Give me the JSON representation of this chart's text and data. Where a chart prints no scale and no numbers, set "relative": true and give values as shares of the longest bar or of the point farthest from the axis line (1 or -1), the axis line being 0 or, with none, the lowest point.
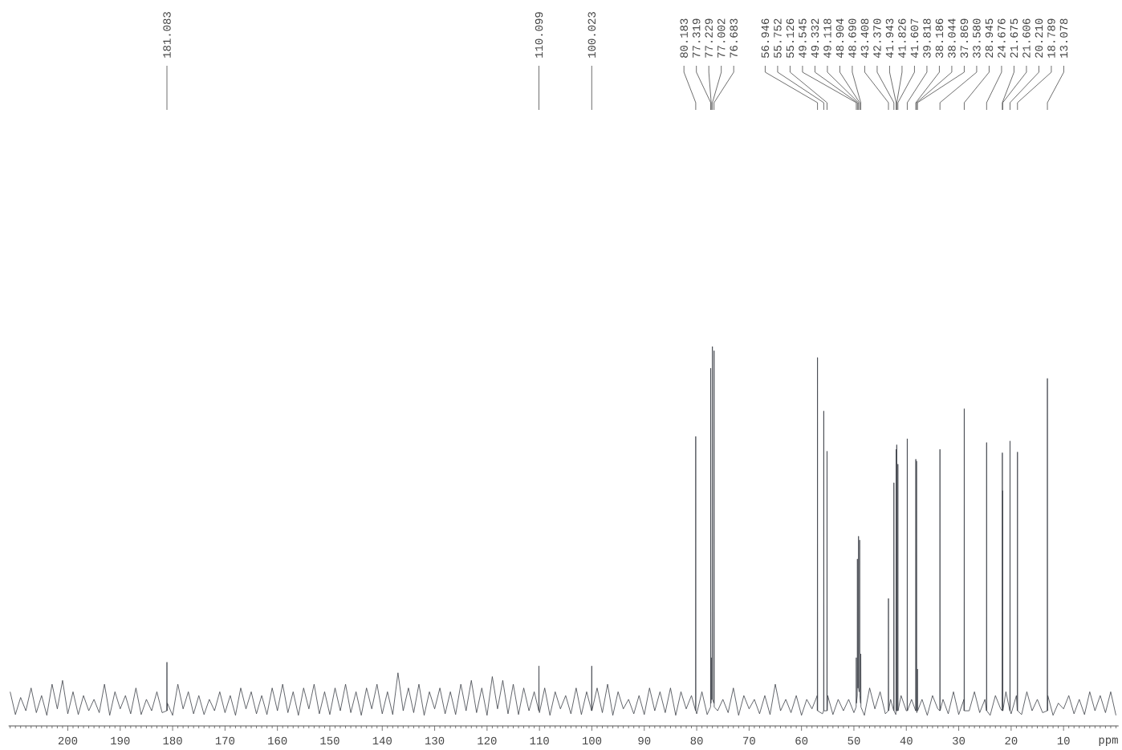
{
  "chart_data": {
    "type": "line",
    "relative": true,
    "xlabel": "ppm",
    "xlim": [
      211.3,
      -0.5
    ],
    "color": "#3c4047",
    "xticks": [
      {
        "value": 211,
        "label": null
      },
      {
        "value": 210,
        "label": null
      },
      {
        "value": 209,
        "label": null
      },
      {
        "value": 208,
        "label": null
      },
      {
        "value": 207,
        "label": null
      },
      {
        "value": 206,
        "label": null
      },
      {
        "value": 205,
        "label": null
      },
      {
        "value": 204,
        "label": null
      },
      {
        "value": 203,
        "label": null
      },
      {
        "value": 202,
        "label": null
      },
      {
        "value": 201,
        "label": null
      },
      200,
      {
        "value": 199,
        "label": null
      },
      {
        "value": 198,
        "label": null
      },
      {
        "value": 197,
        "label": null
      },
      {
        "value": 196,
        "label": null
      },
      {
        "value": 195,
        "label": null
      },
      {
        "value": 194,
        "label": null
      },
      {
        "value": 193,
        "label": null
      },
      {
        "value": 192,
        "label": null
      },
      {
        "value": 191,
        "label": null
      },
      190,
      {
        "value": 189,
        "label": null
      },
      {
        "value": 188,
        "label": null
      },
      {
        "value": 187,
        "label": null
      },
      {
        "value": 186,
        "label": null
      },
      {
        "value": 185,
        "label": null
      },
      {
        "value": 184,
        "label": null
      },
      {
        "value": 183,
        "label": null
      },
      {
        "value": 182,
        "label": null
      },
      {
        "value": 181,
        "label": null
      },
      180,
      {
        "value": 179,
        "label": null
      },
      {
        "value": 178,
        "label": null
      },
      {
        "value": 177,
        "label": null
      },
      {
        "value": 176,
        "label": null
      },
      {
        "value": 175,
        "label": null
      },
      {
        "value": 174,
        "label": null
      },
      {
        "value": 173,
        "label": null
      },
      {
        "value": 172,
        "label": null
      },
      {
        "value": 171,
        "label": null
      },
      170,
      {
        "value": 169,
        "label": null
      },
      {
        "value": 168,
        "label": null
      },
      {
        "value": 167,
        "label": null
      },
      {
        "value": 166,
        "label": null
      },
      {
        "value": 165,
        "label": null
      },
      {
        "value": 164,
        "label": null
      },
      {
        "value": 163,
        "label": null
      },
      {
        "value": 162,
        "label": null
      },
      {
        "value": 161,
        "label": null
      },
      160,
      {
        "value": 159,
        "label": null
      },
      {
        "value": 158,
        "label": null
      },
      {
        "value": 157,
        "label": null
      },
      {
        "value": 156,
        "label": null
      },
      {
        "value": 155,
        "label": null
      },
      {
        "value": 154,
        "label": null
      },
      {
        "value": 153,
        "label": null
      },
      {
        "value": 152,
        "label": null
      },
      {
        "value": 151,
        "label": null
      },
      150,
      {
        "value": 149,
        "label": null
      },
      {
        "value": 148,
        "label": null
      },
      {
        "value": 147,
        "label": null
      },
      {
        "value": 146,
        "label": null
      },
      {
        "value": 145,
        "label": null
      },
      {
        "value": 144,
        "label": null
      },
      {
        "value": 143,
        "label": null
      },
      {
        "value": 142,
        "label": null
      },
      {
        "value": 141,
        "label": null
      },
      140,
      {
        "value": 139,
        "label": null
      },
      {
        "value": 138,
        "label": null
      },
      {
        "value": 137,
        "label": null
      },
      {
        "value": 136,
        "label": null
      },
      {
        "value": 135,
        "label": null
      },
      {
        "value": 134,
        "label": null
      },
      {
        "value": 133,
        "label": null
      },
      {
        "value": 132,
        "label": null
      },
      {
        "value": 131,
        "label": null
      },
      130,
      {
        "value": 129,
        "label": null
      },
      {
        "value": 128,
        "label": null
      },
      {
        "value": 127,
        "label": null
      },
      {
        "value": 126,
        "label": null
      },
      {
        "value": 125,
        "label": null
      },
      {
        "value": 124,
        "label": null
      },
      {
        "value": 123,
        "label": null
      },
      {
        "value": 122,
        "label": null
      },
      {
        "value": 121,
        "label": null
      },
      120,
      {
        "value": 119,
        "label": null
      },
      {
        "value": 118,
        "label": null
      },
      {
        "value": 117,
        "label": null
      },
      {
        "value": 116,
        "label": null
      },
      {
        "value": 115,
        "label": null
      },
      {
        "value": 114,
        "label": null
      },
      {
        "value": 113,
        "label": null
      },
      {
        "value": 112,
        "label": null
      },
      {
        "value": 111,
        "label": null
      },
      110,
      {
        "value": 109,
        "label": null
      },
      {
        "value": 108,
        "label": null
      },
      {
        "value": 107,
        "label": null
      },
      {
        "value": 106,
        "label": null
      },
      {
        "value": 105,
        "label": null
      },
      {
        "value": 104,
        "label": null
      },
      {
        "value": 103,
        "label": null
      },
      {
        "value": 102,
        "label": null
      },
      {
        "value": 101,
        "label": null
      },
      100,
      {
        "value": 99,
        "label": null
      },
      {
        "value": 98,
        "label": null
      },
      {
        "value": 97,
        "label": null
      },
      {
        "value": 96,
        "label": null
      },
      {
        "value": 95,
        "label": null
      },
      {
        "value": 94,
        "label": null
      },
      {
        "value": 93,
        "label": null
      },
      {
        "value": 92,
        "label": null
      },
      {
        "value": 91,
        "label": null
      },
      90,
      {
        "value": 89,
        "label": null
      },
      {
        "value": 88,
        "label": null
      },
      {
        "value": 87,
        "label": null
      },
      {
        "value": 86,
        "label": null
      },
      {
        "value": 85,
        "label": null
      },
      {
        "value": 84,
        "label": null
      },
      {
        "value": 83,
        "label": null
      },
      {
        "value": 82,
        "label": null
      },
      {
        "value": 81,
        "label": null
      },
      80,
      {
        "value": 79,
        "label": null
      },
      {
        "value": 78,
        "label": null
      },
      {
        "value": 77,
        "label": null
      },
      {
        "value": 76,
        "label": null
      },
      {
        "value": 75,
        "label": null
      },
      {
        "value": 74,
        "label": null
      },
      {
        "value": 73,
        "label": null
      },
      {
        "value": 72,
        "label": null
      },
      {
        "value": 71,
        "label": null
      },
      70,
      {
        "value": 69,
        "label": null
      },
      {
        "value": 68,
        "label": null
      },
      {
        "value": 67,
        "label": null
      },
      {
        "value": 66,
        "label": null
      },
      {
        "value": 65,
        "label": null
      },
      {
        "value": 64,
        "label": null
      },
      {
        "value": 63,
        "label": null
      },
      {
        "value": 62,
        "label": null
      },
      {
        "value": 61,
        "label": null
      },
      60,
      {
        "value": 59,
        "label": null
      },
      {
        "value": 58,
        "label": null
      },
      {
        "value": 57,
        "label": null
      },
      {
        "value": 56,
        "label": null
      },
      {
        "value": 55,
        "label": null
      },
      {
        "value": 54,
        "label": null
      },
      {
        "value": 53,
        "label": null
      },
      {
        "value": 52,
        "label": null
      },
      {
        "value": 51,
        "label": null
      },
      50,
      {
        "value": 49,
        "label": null
      },
      {
        "value": 48,
        "label": null
      },
      {
        "value": 47,
        "label": null
      },
      {
        "value": 46,
        "label": null
      },
      {
        "value": 45,
        "label": null
      },
      {
        "value": 44,
        "label": null
      },
      {
        "value": 43,
        "label": null
      },
      {
        "value": 42,
        "label": null
      },
      {
        "value": 41,
        "label": null
      },
      40,
      {
        "value": 39,
        "label": null
      },
      {
        "value": 38,
        "label": null
      },
      {
        "value": 37,
        "label": null
      },
      {
        "value": 36,
        "label": null
      },
      {
        "value": 35,
        "label": null
      },
      {
        "value": 34,
        "label": null
      },
      {
        "value": 33,
        "label": null
      },
      {
        "value": 32,
        "label": null
      },
      {
        "value": 31,
        "label": null
      },
      30,
      {
        "value": 29,
        "label": null
      },
      {
        "value": 28,
        "label": null
      },
      {
        "value": 27,
        "label": null
      },
      {
        "value": 26,
        "label": null
      },
      {
        "value": 25,
        "label": null
      },
      {
        "value": 24,
        "label": null
      },
      {
        "value": 23,
        "label": null
      },
      {
        "value": 22,
        "label": null
      },
      {
        "value": 21,
        "label": null
      },
      20,
      {
        "value": 19,
        "label": null
      },
      {
        "value": 18,
        "label": null
      },
      {
        "value": 17,
        "label": null
      },
      {
        "value": 16,
        "label": null
      },
      {
        "value": 15,
        "label": null
      },
      {
        "value": 14,
        "label": null
      },
      {
        "value": 13,
        "label": null
      },
      {
        "value": 12,
        "label": null
      },
      {
        "value": 11,
        "label": null
      },
      10,
      {
        "value": 9,
        "label": null
      },
      {
        "value": 8,
        "label": null
      },
      {
        "value": 7,
        "label": null
      },
      {
        "value": 6,
        "label": null
      },
      {
        "value": 5,
        "label": null
      },
      {
        "value": 4,
        "label": null
      },
      {
        "value": 3,
        "label": null
      },
      {
        "value": 2,
        "label": null
      },
      {
        "value": 1,
        "label": null
      },
      {
        "value": 0,
        "label": null
      }
    ],
    "x": [
      211,
      210,
      209,
      208,
      207,
      206,
      205,
      204,
      203,
      202,
      201,
      200,
      199,
      198,
      197,
      196,
      195,
      194,
      193,
      192,
      191,
      190,
      189,
      188,
      187,
      186,
      185,
      184,
      183,
      182,
      181.113,
      181.083,
      181.053,
      181,
      180,
      179,
      178,
      177,
      176,
      175,
      174,
      173,
      172,
      171,
      170,
      169,
      168,
      167,
      166,
      165,
      164,
      163,
      162,
      161,
      160,
      159,
      158,
      157,
      156,
      155,
      154,
      153,
      152,
      151,
      150,
      149,
      148,
      147,
      146,
      145,
      144,
      143,
      142,
      141,
      140,
      139,
      138,
      137,
      136,
      135,
      134,
      133,
      132,
      131,
      130,
      129,
      128,
      127,
      126,
      125,
      124,
      123,
      122,
      121,
      120,
      119,
      118,
      117,
      116,
      115,
      114,
      113,
      112,
      111,
      110.129,
      110.099,
      110.069,
      110,
      109,
      108,
      107,
      106,
      105,
      104,
      103,
      102,
      101,
      100.053,
      100.023,
      99.993,
      99,
      98,
      97,
      96,
      95,
      94,
      93,
      92,
      91,
      90,
      89,
      88,
      87,
      86,
      85,
      84,
      83,
      82,
      81,
      80.213,
      80.183,
      80.153,
      80,
      79,
      78,
      77.349,
      77.319,
      77.289,
      77.259,
      77.229,
      77.199,
      77.032,
      77.002,
      76.972,
      76.713,
      76.683,
      76.653,
      76,
      75,
      74,
      73,
      72,
      71,
      70,
      69,
      68,
      67,
      66,
      65,
      64,
      63,
      62,
      61,
      60,
      59,
      58,
      57,
      56.976,
      56.946,
      56.916,
      56,
      55.782,
      55.752,
      55.722,
      55.156,
      55.126,
      55.096,
      55,
      54,
      53,
      52,
      51,
      50,
      49.575,
      49.545,
      49.515,
      49.362,
      49.332,
      49.302,
      49.148,
      49.118,
      49.088,
      49,
      48.934,
      48.904,
      48.874,
      48.72,
      48.69,
      48.66,
      48,
      47,
      46,
      45,
      44,
      43.438,
      43.408,
      43.378,
      43,
      42.4,
      42.37,
      42.34,
      42,
      41.973,
      41.943,
      41.913,
      41.856,
      41.826,
      41.796,
      41.637,
      41.607,
      41.577,
      41,
      40,
      39.848,
      39.818,
      39.788,
      39,
      38.216,
      38.186,
      38.156,
      38.074,
      38.044,
      38.014,
      38,
      37.899,
      37.869,
      37.839,
      37,
      36,
      35,
      34,
      33.61,
      33.58,
      33.55,
      33,
      32,
      31,
      30,
      29,
      28.975,
      28.945,
      28.915,
      28,
      27,
      26,
      25,
      24.706,
      24.676,
      24.646,
      24,
      23,
      22,
      21.705,
      21.675,
      21.645,
      21.636,
      21.606,
      21.576,
      21,
      20.24,
      20.21,
      20.18,
      20,
      19,
      18.819,
      18.789,
      18.759,
      18,
      17,
      16,
      15,
      14,
      13.108,
      13.078,
      13.048,
      13,
      12,
      11,
      10,
      9,
      8,
      7,
      6,
      5,
      4,
      3,
      2,
      1,
      0
    ],
    "values": [
      0.09,
      0.03,
      0.075,
      0.04,
      0.1,
      0.035,
      0.08,
      0.028,
      0.11,
      0.045,
      0.12,
      0.032,
      0.09,
      0.03,
      0.08,
      0.04,
      0.07,
      0.035,
      0.11,
      0.028,
      0.09,
      0.045,
      0.08,
      0.032,
      0.1,
      0.03,
      0.07,
      0.04,
      0.09,
      0.035,
      0.04,
      0.168,
      0.04,
      0.06,
      0.028,
      0.11,
      0.045,
      0.09,
      0.032,
      0.08,
      0.03,
      0.07,
      0.04,
      0.09,
      0.035,
      0.08,
      0.028,
      0.1,
      0.045,
      0.09,
      0.032,
      0.08,
      0.03,
      0.1,
      0.04,
      0.11,
      0.035,
      0.09,
      0.028,
      0.1,
      0.045,
      0.11,
      0.032,
      0.09,
      0.03,
      0.1,
      0.04,
      0.11,
      0.035,
      0.09,
      0.028,
      0.1,
      0.045,
      0.11,
      0.032,
      0.09,
      0.03,
      0.14,
      0.04,
      0.1,
      0.035,
      0.11,
      0.028,
      0.09,
      0.045,
      0.1,
      0.032,
      0.09,
      0.03,
      0.11,
      0.04,
      0.12,
      0.035,
      0.1,
      0.028,
      0.13,
      0.045,
      0.12,
      0.032,
      0.11,
      0.03,
      0.1,
      0.04,
      0.09,
      0.04,
      0.158,
      0.04,
      0.035,
      0.1,
      0.028,
      0.09,
      0.045,
      0.08,
      0.032,
      0.1,
      0.03,
      0.09,
      0.04,
      0.158,
      0.04,
      0.1,
      0.035,
      0.11,
      0.028,
      0.09,
      0.045,
      0.07,
      0.032,
      0.08,
      0.03,
      0.1,
      0.04,
      0.09,
      0.035,
      0.1,
      0.028,
      0.09,
      0.045,
      0.08,
      0.04,
      0.763,
      0.04,
      0.032,
      0.09,
      0.03,
      0.05,
      0.943,
      0.06,
      0.06,
      0.18,
      0.07,
      0.07,
      1,
      0.07,
      0.06,
      0.989,
      0.05,
      0.04,
      0.07,
      0.035,
      0.1,
      0.028,
      0.08,
      0.045,
      0.07,
      0.032,
      0.08,
      0.03,
      0.11,
      0.04,
      0.07,
      0.035,
      0.08,
      0.028,
      0.07,
      0.045,
      0.08,
      0.04,
      0.971,
      0.04,
      0.032,
      0.04,
      0.83,
      0.04,
      0.04,
      0.724,
      0.04,
      0.08,
      0.03,
      0.07,
      0.04,
      0.07,
      0.035,
      0.05,
      0.18,
      0.06,
      0.08,
      0.44,
      0.1,
      0.1,
      0.5,
      0.1,
      0.09,
      0.1,
      0.49,
      0.08,
      0.06,
      0.19,
      0.05,
      0.028,
      0.1,
      0.045,
      0.09,
      0.032,
      0.04,
      0.336,
      0.04,
      0.07,
      0.04,
      0.641,
      0.04,
      0.03,
      0.04,
      0.729,
      0.04,
      0.04,
      0.741,
      0.04,
      0.04,
      0.69,
      0.04,
      0.08,
      0.04,
      0.04,
      0.757,
      0.04,
      0.07,
      0.04,
      0.703,
      0.04,
      0.04,
      0.698,
      0.04,
      0.035,
      0.04,
      0.15,
      0.04,
      0.07,
      0.028,
      0.08,
      0.045,
      0.04,
      0.729,
      0.04,
      0.07,
      0.032,
      0.09,
      0.03,
      0.07,
      0.04,
      0.836,
      0.04,
      0.04,
      0.09,
      0.035,
      0.07,
      0.04,
      0.747,
      0.04,
      0.028,
      0.08,
      0.045,
      0.04,
      0.72,
      0.04,
      0.04,
      0.62,
      0.04,
      0.09,
      0.04,
      0.751,
      0.04,
      0.032,
      0.08,
      0.04,
      0.722,
      0.04,
      0.03,
      0.09,
      0.04,
      0.07,
      0.035,
      0.04,
      0.916,
      0.04,
      0.08,
      0.028,
      0.06,
      0.045,
      0.08,
      0.032,
      0.07,
      0.03,
      0.09,
      0.04,
      0.08,
      0.035,
      0.09,
      0.028
    ],
    "annotations": [
      "181.083",
      "110.099",
      "100.023",
      "80.183",
      "77.319",
      "77.229",
      "77.002",
      "76.683",
      "56.946",
      "55.752",
      "55.126",
      "49.545",
      "49.332",
      "49.118",
      "48.904",
      "48.690",
      "43.408",
      "42.370",
      "41.943",
      "41.826",
      "41.607",
      "39.818",
      "38.186",
      "38.044",
      "37.869",
      "33.580",
      "28.945",
      "24.676",
      "21.675",
      "21.606",
      "20.210",
      "18.789",
      "13.078"
    ]
  }
}
